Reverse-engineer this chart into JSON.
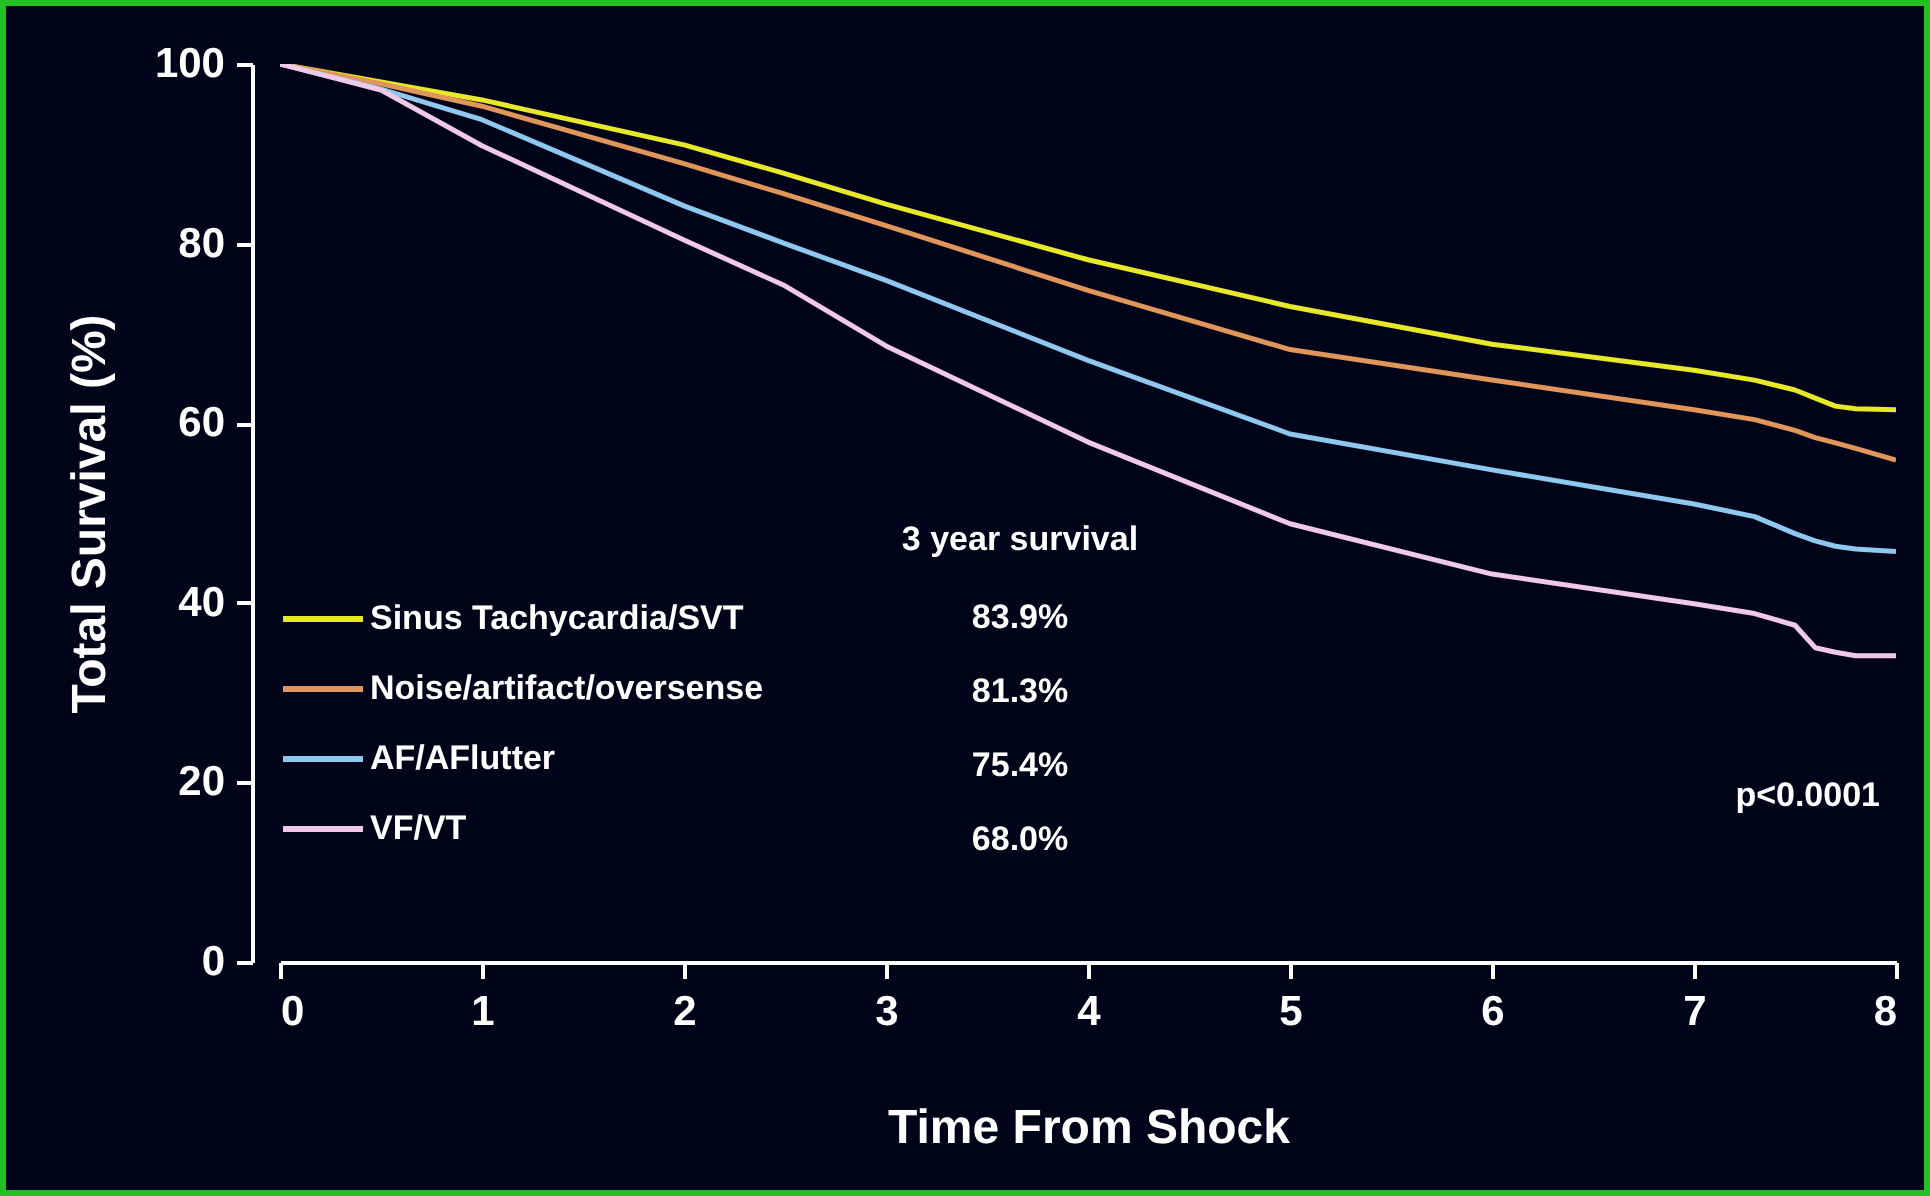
{
  "chart_data": {
    "type": "line",
    "xlabel": "Time From Shock",
    "ylabel": "Total Survival (%)",
    "x": [
      0,
      0.5,
      1,
      2,
      2.5,
      3,
      4,
      5,
      6,
      7,
      7.3,
      7.5,
      7.6,
      7.7,
      7.8,
      8
    ],
    "series": [
      {
        "name": "Sinus Tachycardia/SVT",
        "color": "#e8e82a",
        "values": [
          100,
          98,
          96,
          91,
          87.8,
          84.4,
          78.2,
          73,
          68.8,
          65.9,
          64.8,
          63.7,
          62.8,
          61.9,
          61.6,
          61.5
        ]
      },
      {
        "name": "Noise/artifact/oversense",
        "color": "#e0955a",
        "values": [
          100,
          97.8,
          95.3,
          88.9,
          85.5,
          82,
          74.8,
          68.2,
          64.8,
          61.5,
          60.4,
          59.2,
          58.4,
          57.8,
          57.2,
          55.9
        ]
      },
      {
        "name": "AF/AFlutter",
        "color": "#8ec8ee",
        "values": [
          100,
          97.2,
          93.8,
          84.2,
          80,
          75.9,
          67,
          58.8,
          54.8,
          51,
          49.6,
          47.7,
          46.9,
          46.3,
          46,
          45.7
        ]
      },
      {
        "name": "VF/VT",
        "color": "#f0c8e8",
        "values": [
          100,
          97.1,
          90.9,
          80.4,
          75.3,
          68.6,
          57.9,
          48.8,
          43.2,
          39.9,
          38.8,
          37.5,
          35,
          34.5,
          34.1,
          34.1
        ]
      }
    ],
    "annotations": [
      "3 year survival",
      "83.9%",
      "81.3%",
      "75.4%",
      "68.0%",
      "p<0.0001"
    ],
    "xlim": [
      0,
      8
    ],
    "xticks": [
      0,
      1,
      2,
      3,
      4,
      5,
      6,
      7,
      8
    ],
    "ylim": [
      0,
      100
    ],
    "yticks": [
      0,
      20,
      40,
      60,
      80,
      100
    ],
    "grid": false,
    "legend": "bottom left",
    "marker": "none",
    "line_style": "solid"
  }
}
